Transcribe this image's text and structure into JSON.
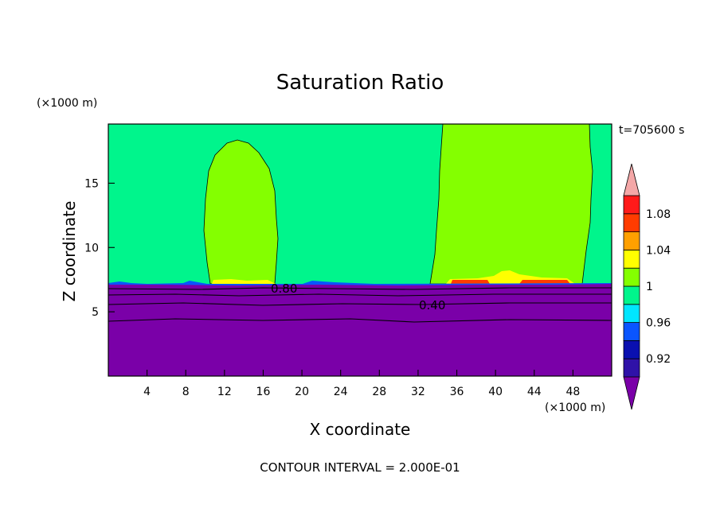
{
  "chart_data": {
    "type": "heatmap",
    "title": "Saturation Ratio",
    "xlabel": "X coordinate",
    "ylabel": "Z coordinate",
    "x_unit": "(×1000 m)",
    "y_unit": "(×1000 m)",
    "time_label": "t=705600 s",
    "footer": "CONTOUR INTERVAL = 2.000E-01",
    "xlim": [
      0,
      52
    ],
    "ylim": [
      0,
      19.6
    ],
    "x_ticks": [
      4,
      8,
      12,
      16,
      20,
      24,
      28,
      32,
      36,
      40,
      44,
      48
    ],
    "y_ticks": [
      5,
      10,
      15
    ],
    "colorbar": {
      "levels": [
        0.92,
        0.94,
        0.96,
        0.98,
        1.0,
        1.02,
        1.04,
        1.06,
        1.08,
        1.1
      ],
      "colors": [
        "#7a00a8",
        "#2f12a8",
        "#0a10b0",
        "#0a55ff",
        "#00e6ff",
        "#00f58c",
        "#84ff00",
        "#ffff00",
        "#ffa000",
        "#ff3c00",
        "#ff1a1a",
        "#f4a7a7"
      ],
      "labels": [
        "0.92",
        "0.96",
        "1",
        "1.04",
        "1.08"
      ],
      "label_values": [
        0.92,
        0.96,
        1.0,
        1.04,
        1.08
      ]
    },
    "fields": {
      "background": {
        "color": "#00f58c",
        "value": 0.99
      },
      "subsaturated_layer": {
        "color": "#7a00a8",
        "top_z": 7.3
      },
      "moist_columns": [
        {
          "color": "#84ff00",
          "x_range": [
            10.2,
            17.0
          ],
          "z_range": [
            7.3,
            18.5
          ]
        },
        {
          "color": "#84ff00",
          "x_range": [
            31.8,
            49.4
          ],
          "z_range": [
            7.3,
            19.6
          ]
        }
      ]
    },
    "contour_labels": [
      {
        "text": "0.80",
        "x": 18.0,
        "z": 7.0
      },
      {
        "text": "0.40",
        "x": 33.5,
        "z": 5.7
      }
    ]
  }
}
